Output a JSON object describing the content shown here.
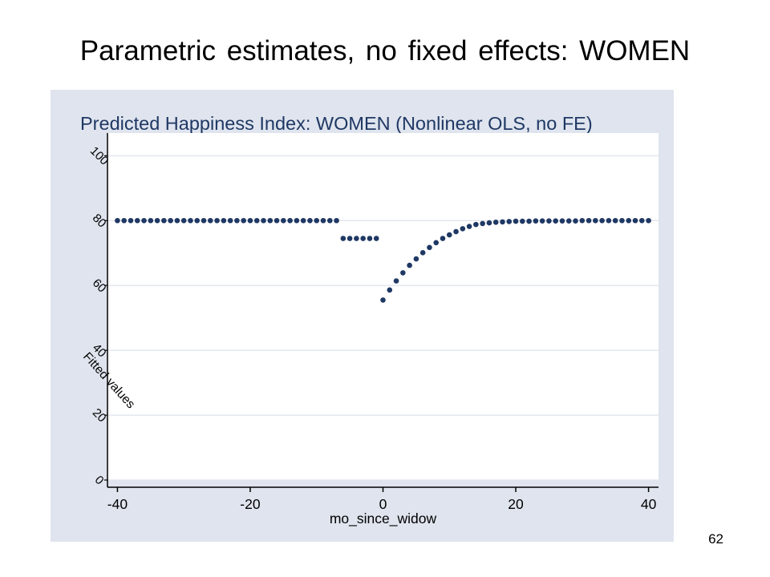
{
  "slide": {
    "title": "Parametric estimates, no fixed effects: WOMEN",
    "page_number": "62"
  },
  "colors": {
    "panel_background": "#dfe4ee",
    "plot_background": "#ffffff",
    "marker": "#1f3864",
    "title_text": "#1f3864"
  },
  "chart_data": {
    "type": "scatter",
    "title": "Predicted Happiness Index: WOMEN (Nonlinear OLS, no FE)",
    "xlabel": "mo_since_widow",
    "ylabel": "Fitted values",
    "xlim": [
      -41.5,
      41.5
    ],
    "ylim": [
      0,
      107
    ],
    "xticks": [
      -40,
      -20,
      0,
      20,
      40
    ],
    "yticks": [
      0,
      20,
      40,
      60,
      80,
      100
    ],
    "grid": "horizontal",
    "series": [
      {
        "name": "Fitted values",
        "x": [
          -40,
          -39,
          -38,
          -37,
          -36,
          -35,
          -34,
          -33,
          -32,
          -31,
          -30,
          -29,
          -28,
          -27,
          -26,
          -25,
          -24,
          -23,
          -22,
          -21,
          -20,
          -19,
          -18,
          -17,
          -16,
          -15,
          -14,
          -13,
          -12,
          -11,
          -10,
          -9,
          -8,
          -7,
          -6,
          -5,
          -4,
          -3,
          -2,
          -1,
          0,
          1,
          2,
          3,
          4,
          5,
          6,
          7,
          8,
          9,
          10,
          11,
          12,
          13,
          14,
          15,
          16,
          17,
          18,
          19,
          20,
          21,
          22,
          23,
          24,
          25,
          26,
          27,
          28,
          29,
          30,
          31,
          32,
          33,
          34,
          35,
          36,
          37,
          38,
          39,
          40
        ],
        "y": [
          80,
          80,
          80,
          80,
          80,
          80,
          80,
          80,
          80,
          80,
          80,
          80,
          80,
          80,
          80,
          80,
          80,
          80,
          80,
          80,
          80,
          80,
          80,
          80,
          80,
          80,
          80,
          80,
          80,
          80,
          80,
          80,
          80,
          80,
          74.5,
          74.5,
          74.5,
          74.5,
          74.5,
          74.5,
          55.5,
          58.6,
          61.4,
          63.9,
          66.2,
          68.2,
          70.1,
          71.7,
          73.2,
          74.5,
          75.6,
          76.6,
          77.5,
          78.2,
          78.8,
          79.1,
          79.3,
          79.5,
          79.6,
          79.7,
          79.8,
          79.8,
          79.8,
          79.9,
          79.9,
          79.9,
          79.9,
          79.9,
          79.9,
          79.9,
          80,
          80,
          80,
          80,
          80,
          80,
          80,
          80,
          80,
          80,
          80
        ]
      }
    ]
  }
}
